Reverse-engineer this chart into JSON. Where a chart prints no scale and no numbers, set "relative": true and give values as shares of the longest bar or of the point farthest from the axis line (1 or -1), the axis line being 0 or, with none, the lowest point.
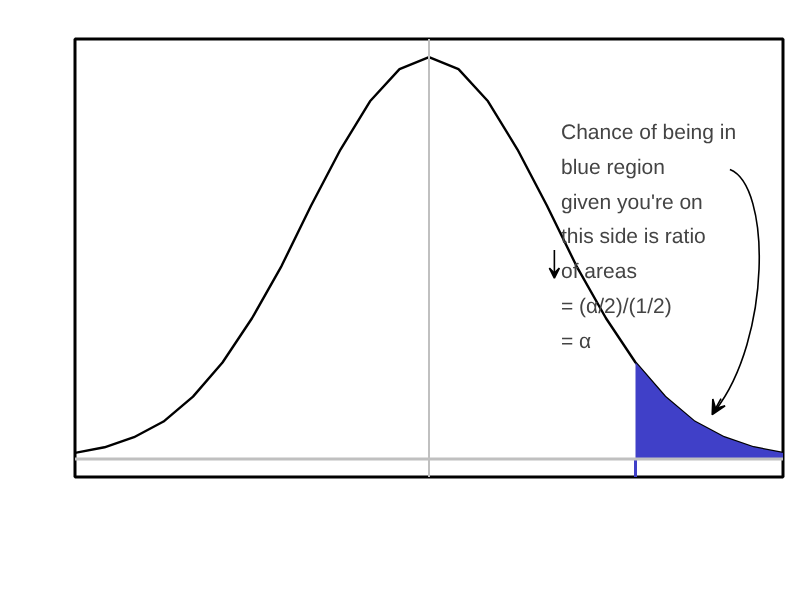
{
  "chart_data": {
    "type": "line",
    "relative": true,
    "categories": [
      null,
      null,
      null,
      null,
      null,
      null,
      null,
      null,
      null,
      null,
      null,
      null,
      null,
      null,
      null,
      null,
      null,
      null,
      null,
      null,
      null,
      null,
      null,
      null,
      null
    ],
    "series": [
      {
        "color": "#000000",
        "values": [
          0.015,
          0.029,
          0.054,
          0.093,
          0.155,
          0.24,
          0.35,
          0.48,
          0.63,
          0.77,
          0.89,
          0.97,
          1.0,
          0.97,
          0.89,
          0.77,
          0.63,
          0.48,
          0.35,
          0.24,
          0.155,
          0.093,
          0.054,
          0.029,
          0.015
        ]
      },
      {
        "type": "area",
        "color": "#4040c8",
        "values": [
          null,
          null,
          null,
          null,
          null,
          null,
          null,
          null,
          null,
          null,
          null,
          null,
          null,
          null,
          null,
          null,
          null,
          null,
          null,
          0.24,
          0.155,
          0.093,
          0.054,
          0.029,
          0.015
        ]
      }
    ],
    "annotations": [
      "Chance of being in\nblue region\ngiven you're on\nthis side is ratio\n      of areas\n    = (α/2)/(1/2)\n        = α"
    ],
    "grid": false
  }
}
